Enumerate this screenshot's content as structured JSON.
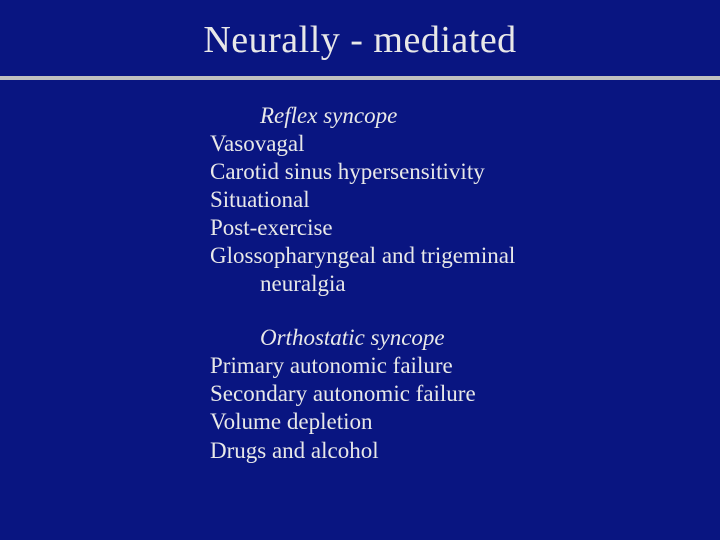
{
  "background_color": "#091581",
  "text_color": "#e8e8e8",
  "divider_color": "#c0c0c0",
  "font_family": "Times New Roman",
  "title_fontsize": 38,
  "body_fontsize": 23,
  "title": "Neurally - mediated",
  "section1": {
    "heading": "Reflex syncope",
    "items": [
      "Vasovagal",
      "Carotid sinus hypersensitivity",
      "Situational",
      "Post-exercise"
    ],
    "wrapped_item_line1": "Glossopharyngeal and trigeminal",
    "wrapped_item_line2": "neuralgia"
  },
  "section2": {
    "heading": "Orthostatic syncope",
    "items": [
      "Primary autonomic failure",
      "Secondary autonomic failure",
      "Volume depletion",
      "Drugs and alcohol"
    ]
  }
}
